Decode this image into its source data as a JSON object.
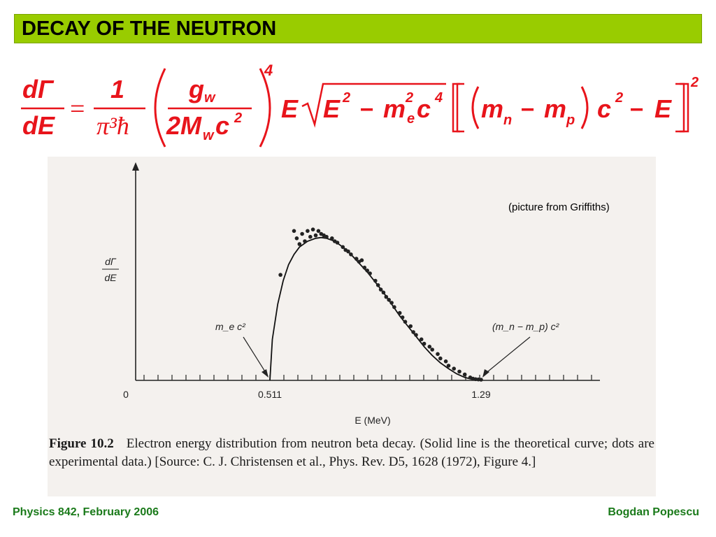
{
  "title": "DECAY OF THE NEUTRON",
  "formula": {
    "lhs_num": "dΓ",
    "lhs_den": "dE",
    "one": "1",
    "pi_hbar": "π³ħ",
    "gw_num": "g",
    "gw_sub": "w",
    "gw_den": "2M",
    "gw_den_sub": "w",
    "gw_den_c": "c",
    "gw_den_exp": "2",
    "outer_exp": "4",
    "E": "E",
    "sqrt_E": "E",
    "sqrt_E_exp": "2",
    "minus": "−",
    "m_e": "m",
    "m_e_sub": "e",
    "m_e_exp": "2",
    "c4": "c",
    "c4_exp": "4",
    "mn": "m",
    "mn_sub": "n",
    "mp": "m",
    "mp_sub": "p",
    "c2": "c",
    "c2_exp": "2",
    "minus_E": "E",
    "bracket_exp": "2"
  },
  "figure": {
    "credit": "(picture from Griffiths)",
    "caption_label": "Figure 10.2",
    "caption_text": "Electron energy distribution from neutron beta decay. (Solid line is the theoretical curve; dots are experimental data.) [Source: C. J. Christensen et al., Phys. Rev. D5, 1628 (1972), Figure 4.]"
  },
  "chart_data": {
    "type": "scatter",
    "xlabel": "E (MeV)",
    "ylabel": "dΓ/dE",
    "x_ticks": [
      "0",
      "0.511",
      "1.29"
    ],
    "xlim": [
      0,
      1.6
    ],
    "ylim": [
      0,
      1.05
    ],
    "annotations": [
      {
        "text": "m_e c²",
        "points_to": 0.511
      },
      {
        "text": "(m_n − m_p) c²",
        "points_to": 1.29
      }
    ],
    "series": [
      {
        "kind": "curve",
        "x": [
          0.511,
          0.52,
          0.54,
          0.56,
          0.58,
          0.6,
          0.62,
          0.65,
          0.68,
          0.7,
          0.72,
          0.75,
          0.78,
          0.81,
          0.84,
          0.87,
          0.9,
          0.93,
          0.96,
          0.99,
          1.02,
          1.05,
          1.08,
          1.11,
          1.14,
          1.17,
          1.2,
          1.23,
          1.26,
          1.29
        ],
        "y": [
          0,
          0.28,
          0.52,
          0.68,
          0.79,
          0.86,
          0.91,
          0.95,
          0.97,
          0.975,
          0.97,
          0.95,
          0.91,
          0.86,
          0.8,
          0.74,
          0.67,
          0.6,
          0.52,
          0.44,
          0.37,
          0.3,
          0.23,
          0.17,
          0.12,
          0.08,
          0.045,
          0.02,
          0.006,
          0
        ]
      },
      {
        "kind": "points",
        "x": [
          0.55,
          0.6,
          0.61,
          0.62,
          0.63,
          0.64,
          0.65,
          0.66,
          0.67,
          0.68,
          0.69,
          0.7,
          0.71,
          0.72,
          0.74,
          0.75,
          0.76,
          0.78,
          0.79,
          0.8,
          0.81,
          0.83,
          0.84,
          0.85,
          0.86,
          0.87,
          0.88,
          0.9,
          0.91,
          0.92,
          0.93,
          0.94,
          0.95,
          0.96,
          0.97,
          0.99,
          1.0,
          1.01,
          1.03,
          1.04,
          1.05,
          1.07,
          1.08,
          1.1,
          1.11,
          1.13,
          1.14,
          1.16,
          1.17,
          1.19,
          1.21,
          1.23,
          1.25,
          1.26,
          1.27,
          1.28,
          1.29
        ],
        "y": [
          0.72,
          1.02,
          0.97,
          0.93,
          1.0,
          0.95,
          1.02,
          0.98,
          1.03,
          0.99,
          1.02,
          1.0,
          0.99,
          0.98,
          0.97,
          0.95,
          0.94,
          0.91,
          0.89,
          0.88,
          0.86,
          0.83,
          0.81,
          0.82,
          0.77,
          0.75,
          0.73,
          0.68,
          0.65,
          0.62,
          0.6,
          0.57,
          0.55,
          0.53,
          0.5,
          0.46,
          0.43,
          0.4,
          0.37,
          0.33,
          0.31,
          0.28,
          0.25,
          0.23,
          0.21,
          0.18,
          0.15,
          0.13,
          0.1,
          0.08,
          0.06,
          0.04,
          0.02,
          0.012,
          0.008,
          0.006,
          0.005
        ]
      }
    ]
  },
  "footer": {
    "left": "Physics 842, February 2006",
    "right": "Bogdan Popescu"
  }
}
